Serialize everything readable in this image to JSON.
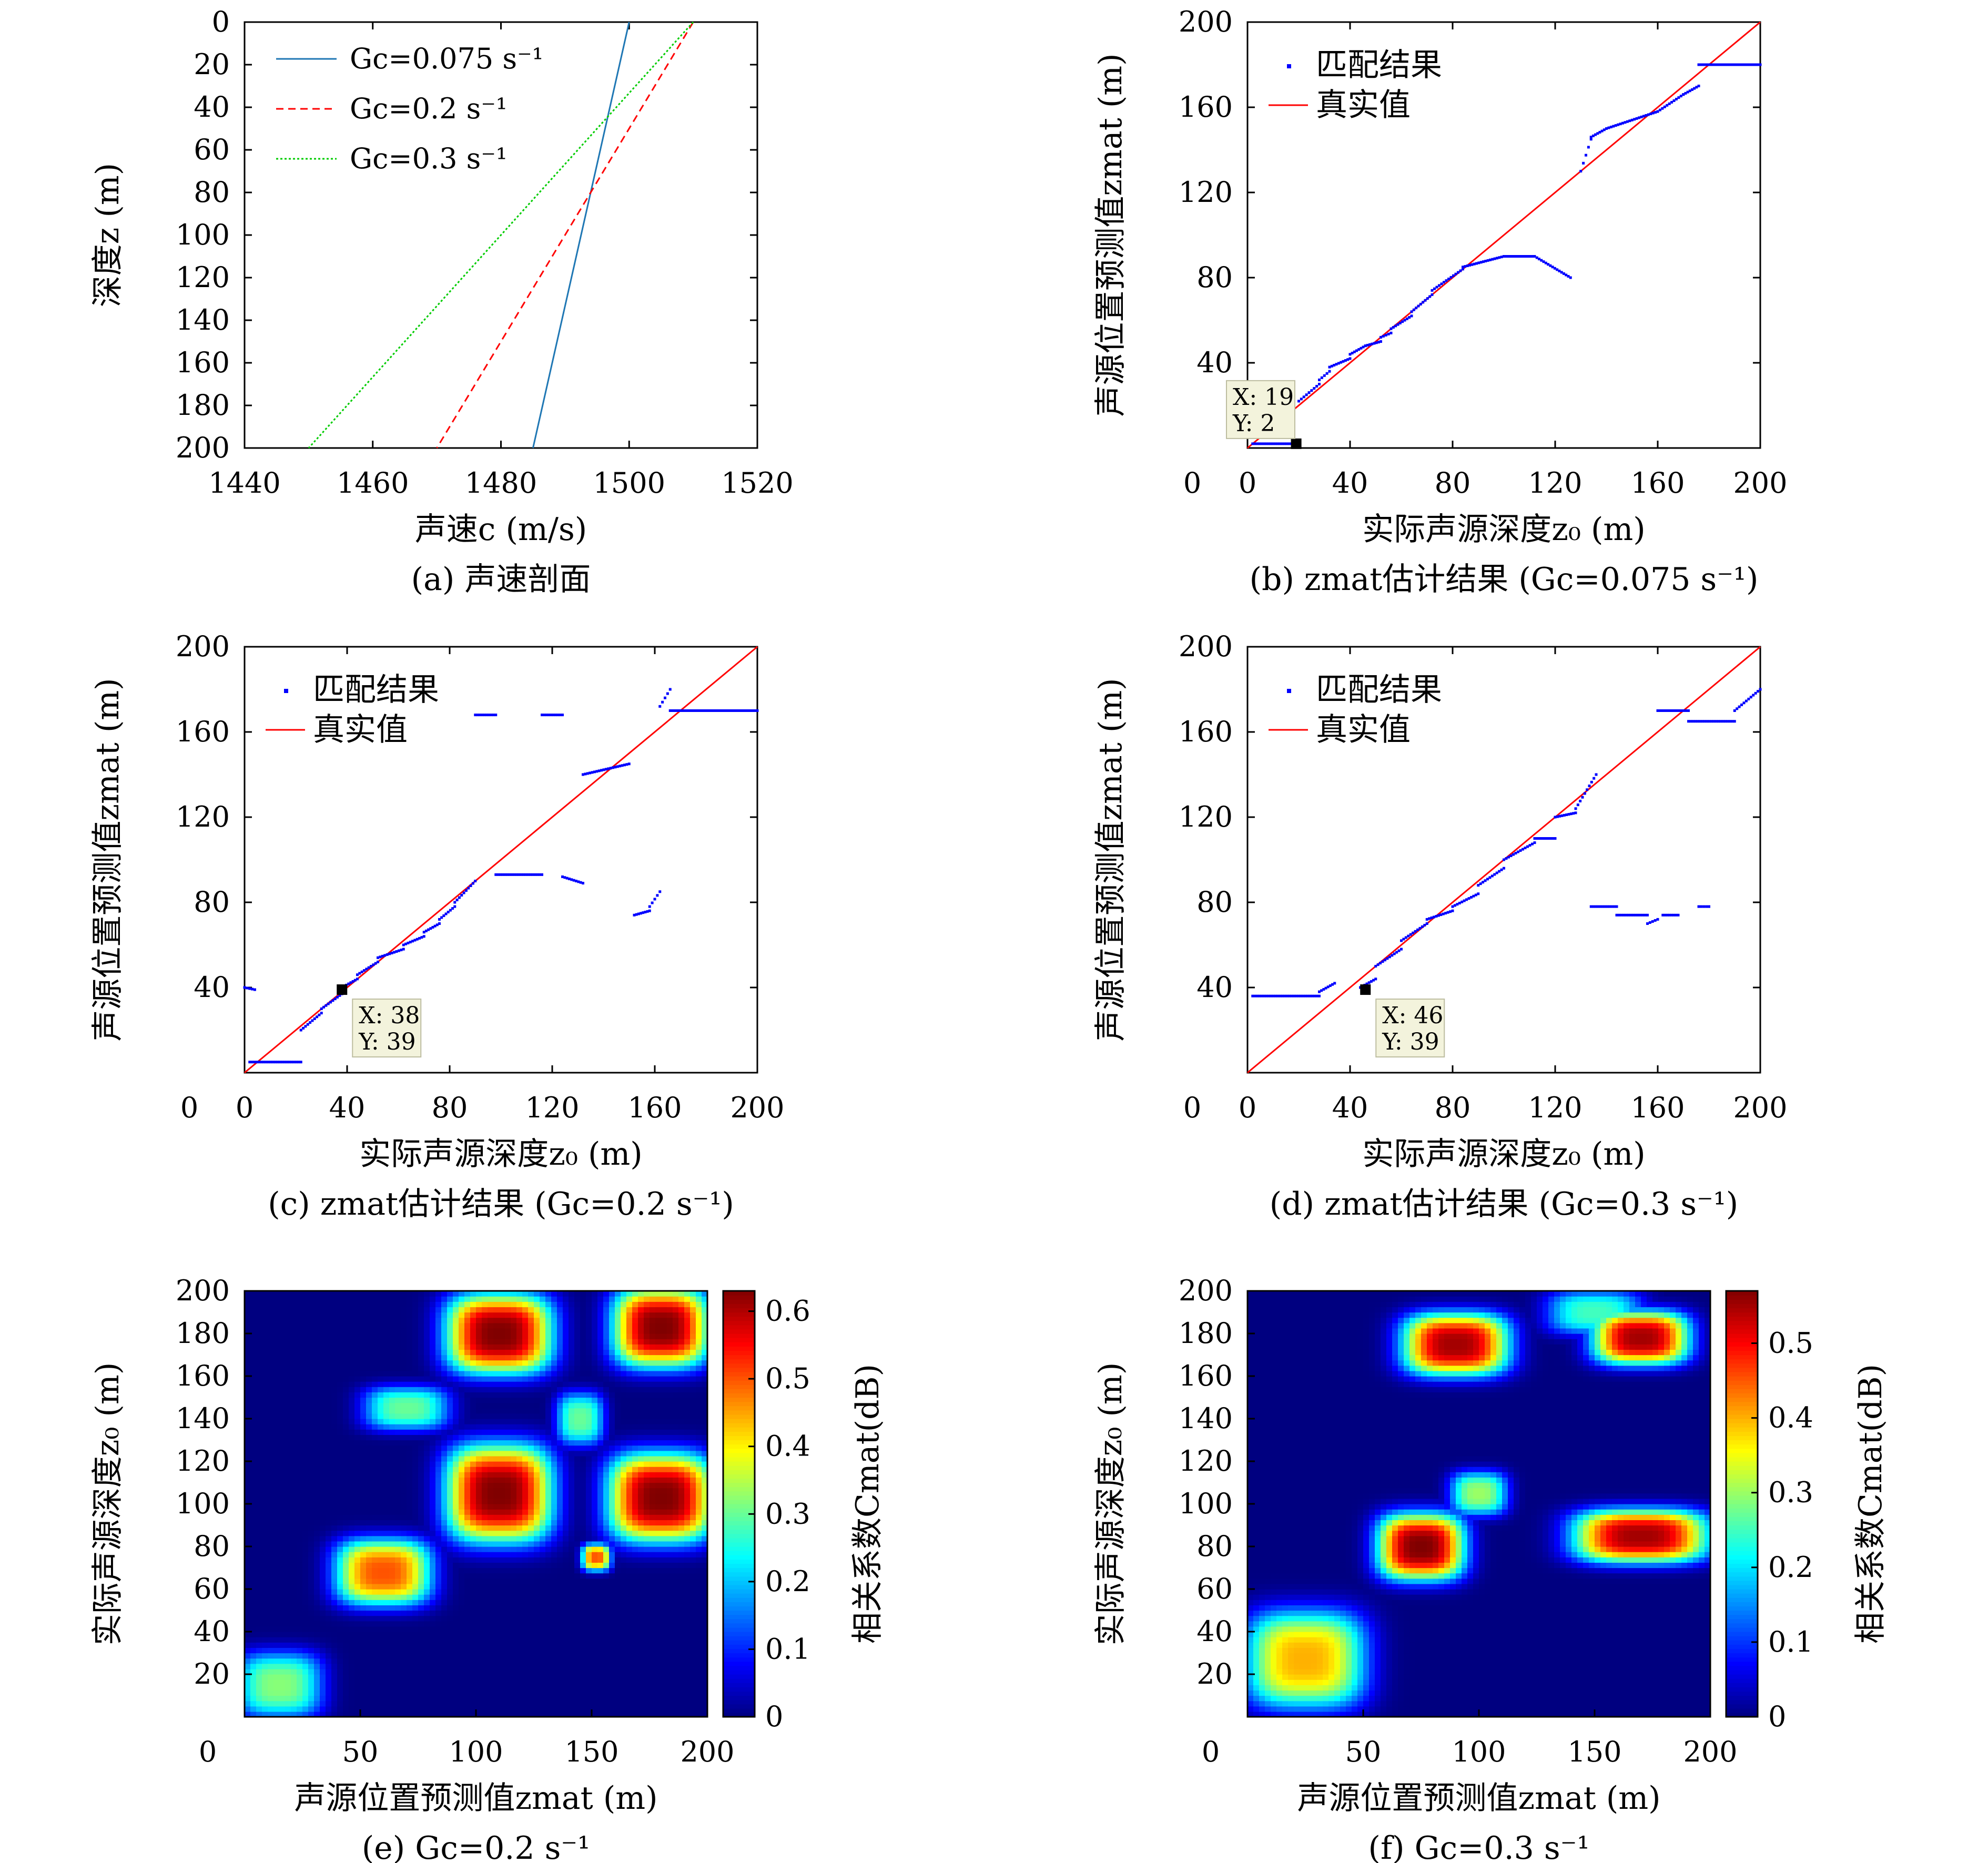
{
  "figure": {
    "panels": [
      {
        "caption": "(a) 声速剖面",
        "xlabel": "声速c (m/s)",
        "ylabel": "深度z (m)"
      },
      {
        "caption": "(b) zmat估计结果 (Gc=0.075 s⁻¹)",
        "xlabel": "实际声源深度z₀ (m)",
        "ylabel": "声源位置预测值zmat (m)"
      },
      {
        "caption": "(c) zmat估计结果 (Gc=0.2 s⁻¹)",
        "xlabel": "实际声源深度z₀ (m)",
        "ylabel": "声源位置预测值zmat (m)"
      },
      {
        "caption": "(d) zmat估计结果 (Gc=0.3 s⁻¹)",
        "xlabel": "实际声源深度z₀ (m)",
        "ylabel": "声源位置预测值zmat (m)"
      },
      {
        "caption": "(e) Gc=0.2 s⁻¹",
        "xlabel": "声源位置预测值zmat (m)",
        "ylabel": "实际声源深度z₀ (m)",
        "cbar_label": "相关系数Cmat(dB)"
      },
      {
        "caption": "(f) Gc=0.3 s⁻¹",
        "xlabel": "声源位置预测值zmat (m)",
        "ylabel": "实际声源深度z₀ (m)",
        "cbar_label": "相关系数Cmat(dB)"
      }
    ],
    "colors": {
      "blue": "#1f77b4",
      "red": "#ff0000",
      "green": "#00cc00",
      "dots": "#0000ff",
      "tooltip_bg": "#f3f3dc"
    }
  },
  "chart_data": [
    {
      "type": "line",
      "xlim": [
        1440,
        1520
      ],
      "ylim": [
        200,
        0
      ],
      "xticks": [
        1440,
        1460,
        1480,
        1500,
        1520
      ],
      "yticks": [
        0,
        20,
        40,
        60,
        80,
        100,
        120,
        140,
        160,
        180,
        200
      ],
      "series": [
        {
          "name": "Gc=0.075 s⁻¹",
          "style": "solid",
          "color": "#1f77b4",
          "x": [
            1500,
            1485
          ],
          "y": [
            0,
            200
          ]
        },
        {
          "name": "Gc=0.2 s⁻¹",
          "style": "dashed",
          "color": "#ff0000",
          "x": [
            1510,
            1470
          ],
          "y": [
            0,
            200
          ]
        },
        {
          "name": "Gc=0.3 s⁻¹",
          "style": "dashdot",
          "color": "#00cc00",
          "x": [
            1510,
            1450
          ],
          "y": [
            0,
            200
          ]
        }
      ],
      "legend": "top-left"
    },
    {
      "type": "scatter",
      "xlim": [
        0,
        200
      ],
      "ylim": [
        0,
        200
      ],
      "xticks": [
        0,
        40,
        80,
        120,
        160,
        200
      ],
      "yticks": [
        40,
        80,
        120,
        160,
        200
      ],
      "legend": {
        "matched": "匹配结果",
        "truth": "真实值"
      },
      "segments": [
        [
          2,
          18,
          2,
          2
        ],
        [
          20,
          24,
          22,
          26
        ],
        [
          24,
          28,
          26,
          30
        ],
        [
          28,
          32,
          32,
          36
        ],
        [
          32,
          40,
          38,
          42
        ],
        [
          40,
          46,
          44,
          48
        ],
        [
          46,
          52,
          48,
          50
        ],
        [
          52,
          56,
          52,
          54
        ],
        [
          56,
          64,
          56,
          62
        ],
        [
          64,
          72,
          64,
          72
        ],
        [
          72,
          84,
          74,
          84
        ],
        [
          84,
          100,
          85,
          90
        ],
        [
          100,
          112,
          90,
          90
        ],
        [
          112,
          126,
          90,
          80
        ],
        [
          130,
          134,
          130,
          145
        ],
        [
          134,
          140,
          146,
          150
        ],
        [
          140,
          160,
          150,
          158
        ],
        [
          160,
          170,
          158,
          166
        ],
        [
          170,
          176,
          166,
          170
        ],
        [
          176,
          200,
          180,
          180
        ]
      ],
      "tooltip": {
        "X": "19",
        "Y": "2"
      },
      "marker": {
        "x": 19,
        "y": 2
      }
    },
    {
      "type": "scatter",
      "xlim": [
        0,
        200
      ],
      "ylim": [
        0,
        200
      ],
      "xticks": [
        0,
        40,
        80,
        120,
        160,
        200
      ],
      "yticks": [
        40,
        80,
        120,
        160,
        200
      ],
      "legend": {
        "matched": "匹配结果",
        "truth": "真实值"
      },
      "segments": [
        [
          0,
          4,
          40,
          39
        ],
        [
          2,
          22,
          5,
          5
        ],
        [
          22,
          30,
          20,
          28
        ],
        [
          30,
          38,
          30,
          37
        ],
        [
          38,
          44,
          40,
          44
        ],
        [
          44,
          52,
          46,
          52
        ],
        [
          52,
          62,
          54,
          58
        ],
        [
          62,
          70,
          60,
          64
        ],
        [
          70,
          76,
          66,
          70
        ],
        [
          76,
          82,
          72,
          78
        ],
        [
          82,
          90,
          80,
          90
        ],
        [
          98,
          116,
          93,
          93
        ],
        [
          124,
          132,
          92,
          89
        ],
        [
          132,
          150,
          140,
          145
        ],
        [
          152,
          158,
          74,
          76
        ],
        [
          158,
          162,
          78,
          85
        ],
        [
          162,
          166,
          172,
          180
        ],
        [
          166,
          180,
          170,
          170
        ],
        [
          180,
          200,
          170,
          170
        ],
        [
          90,
          98,
          168,
          168
        ],
        [
          116,
          124,
          168,
          168
        ]
      ],
      "tooltip": {
        "X": "38",
        "Y": "39"
      },
      "marker": {
        "x": 38,
        "y": 39
      }
    },
    {
      "type": "scatter",
      "xlim": [
        0,
        200
      ],
      "ylim": [
        0,
        200
      ],
      "xticks": [
        0,
        40,
        80,
        120,
        160,
        200
      ],
      "yticks": [
        40,
        80,
        120,
        160,
        200
      ],
      "legend": {
        "matched": "匹配结果",
        "truth": "真实值"
      },
      "segments": [
        [
          2,
          28,
          36,
          36
        ],
        [
          28,
          34,
          38,
          42
        ],
        [
          44,
          50,
          40,
          44
        ],
        [
          50,
          60,
          50,
          58
        ],
        [
          60,
          70,
          62,
          70
        ],
        [
          70,
          80,
          72,
          76
        ],
        [
          80,
          90,
          78,
          84
        ],
        [
          90,
          100,
          88,
          96
        ],
        [
          100,
          112,
          100,
          108
        ],
        [
          112,
          120,
          110,
          110
        ],
        [
          120,
          128,
          120,
          122
        ],
        [
          128,
          136,
          124,
          140
        ],
        [
          134,
          144,
          78,
          78
        ],
        [
          144,
          156,
          74,
          74
        ],
        [
          156,
          160,
          70,
          72
        ],
        [
          162,
          168,
          74,
          74
        ],
        [
          176,
          180,
          78,
          78
        ],
        [
          160,
          172,
          170,
          170
        ],
        [
          172,
          190,
          165,
          165
        ],
        [
          190,
          200,
          170,
          180
        ]
      ],
      "tooltip": {
        "X": "46",
        "Y": "39"
      },
      "marker": {
        "x": 46,
        "y": 39
      }
    },
    {
      "type": "heatmap",
      "xlim": [
        0,
        200
      ],
      "ylim": [
        0,
        200
      ],
      "xticks": [
        0,
        50,
        100,
        150,
        200
      ],
      "yticks": [
        20,
        40,
        60,
        80,
        100,
        120,
        140,
        160,
        180,
        200
      ],
      "cbar": {
        "min": 0,
        "max": 0.63,
        "ticks": [
          0,
          0.1,
          0.2,
          0.3,
          0.4,
          0.5,
          0.6
        ]
      },
      "peaks": [
        {
          "x": 15,
          "y": 15,
          "value": 0.32,
          "rx": 18,
          "ry": 15
        },
        {
          "x": 60,
          "y": 68,
          "value": 0.5,
          "rx": 20,
          "ry": 15
        },
        {
          "x": 110,
          "y": 105,
          "value": 0.63,
          "rx": 22,
          "ry": 22
        },
        {
          "x": 180,
          "y": 103,
          "value": 0.63,
          "rx": 22,
          "ry": 20
        },
        {
          "x": 110,
          "y": 180,
          "value": 0.63,
          "rx": 22,
          "ry": 18
        },
        {
          "x": 180,
          "y": 183,
          "value": 0.63,
          "rx": 20,
          "ry": 18
        },
        {
          "x": 70,
          "y": 145,
          "value": 0.3,
          "rx": 18,
          "ry": 10
        },
        {
          "x": 145,
          "y": 140,
          "value": 0.3,
          "rx": 10,
          "ry": 12
        },
        {
          "x": 152,
          "y": 75,
          "value": 0.5,
          "rx": 6,
          "ry": 6
        }
      ]
    },
    {
      "type": "heatmap",
      "xlim": [
        0,
        200
      ],
      "ylim": [
        0,
        200
      ],
      "xticks": [
        0,
        50,
        100,
        150,
        200
      ],
      "yticks": [
        20,
        40,
        60,
        80,
        100,
        120,
        140,
        160,
        180,
        200
      ],
      "cbar": {
        "min": 0,
        "max": 0.57,
        "ticks": [
          0,
          0.1,
          0.2,
          0.3,
          0.4,
          0.5
        ]
      },
      "peaks": [
        {
          "x": 25,
          "y": 27,
          "value": 0.4,
          "rx": 25,
          "ry": 22
        },
        {
          "x": 75,
          "y": 80,
          "value": 0.57,
          "rx": 18,
          "ry": 15
        },
        {
          "x": 100,
          "y": 105,
          "value": 0.3,
          "rx": 12,
          "ry": 10
        },
        {
          "x": 90,
          "y": 175,
          "value": 0.55,
          "rx": 22,
          "ry": 14
        },
        {
          "x": 170,
          "y": 85,
          "value": 0.55,
          "rx": 28,
          "ry": 12
        },
        {
          "x": 170,
          "y": 178,
          "value": 0.55,
          "rx": 20,
          "ry": 12
        },
        {
          "x": 150,
          "y": 190,
          "value": 0.25,
          "rx": 20,
          "ry": 10
        }
      ]
    }
  ]
}
